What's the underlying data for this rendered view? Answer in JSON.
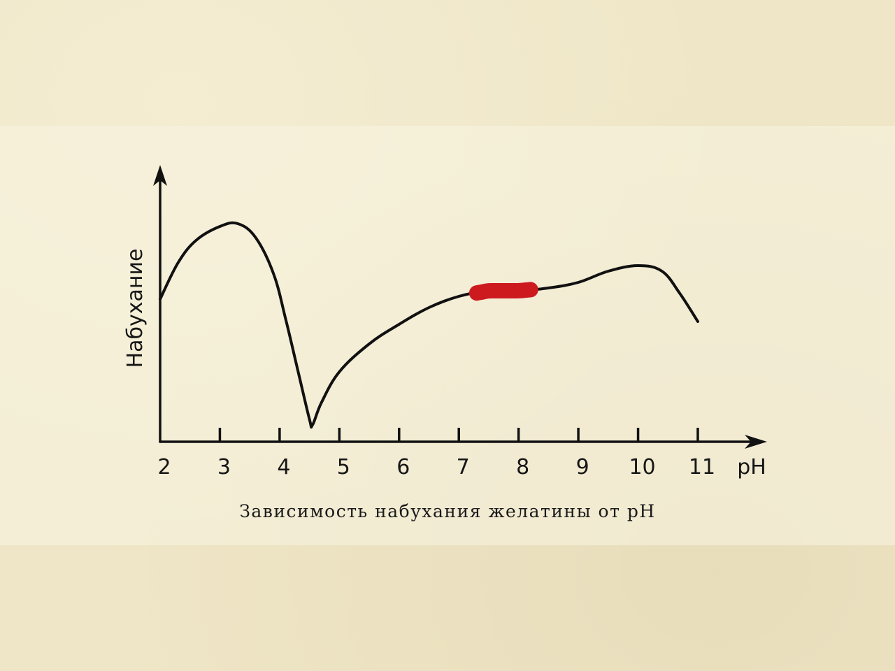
{
  "chart_data": {
    "type": "line",
    "title": "Зависимость набухания желатины от pH",
    "xlabel": "pH",
    "ylabel": "Набухание",
    "xlim": [
      2,
      11
    ],
    "ylim": [
      0,
      10
    ],
    "x_ticks": [
      2,
      3,
      4,
      5,
      6,
      7,
      8,
      9,
      10,
      11
    ],
    "grid": false,
    "series": [
      {
        "x": [
          2.0,
          2.3,
          2.6,
          3.0,
          3.3,
          3.6,
          3.9,
          4.1,
          4.3,
          4.5,
          4.55,
          4.7,
          5.0,
          5.5,
          6.0,
          6.5,
          7.0,
          7.5,
          8.0,
          8.5,
          9.0,
          9.5,
          10.0,
          10.4,
          10.7,
          11.0
        ],
        "y": [
          5.1,
          6.4,
          7.2,
          7.7,
          7.8,
          7.3,
          6.0,
          4.4,
          2.6,
          0.8,
          0.6,
          1.4,
          2.5,
          3.5,
          4.2,
          4.8,
          5.2,
          5.4,
          5.4,
          5.5,
          5.7,
          6.1,
          6.3,
          6.1,
          5.3,
          4.3
        ],
        "color": "#111111"
      }
    ],
    "highlight": {
      "x_range": [
        7.3,
        8.2
      ],
      "color": "#cc1a1f"
    },
    "colors": {
      "curve": "#111111",
      "axes": "#111111",
      "highlight": "#cc1a1f",
      "background": "#efe6c7"
    }
  }
}
